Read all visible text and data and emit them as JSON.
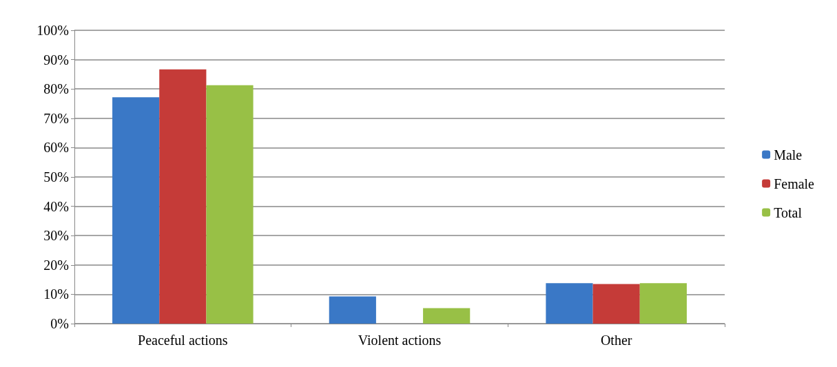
{
  "chart_data": {
    "type": "bar",
    "categories": [
      "Peaceful actions",
      "Violent actions",
      "Other"
    ],
    "series": [
      {
        "name": "Male",
        "color": "#3a78c6",
        "values": [
          77.2,
          9.3,
          13.8
        ]
      },
      {
        "name": "Female",
        "color": "#c53b38",
        "values": [
          86.7,
          0,
          13.5
        ]
      },
      {
        "name": "Total",
        "color": "#98c046",
        "values": [
          81.3,
          5.3,
          13.8
        ]
      }
    ],
    "ylim": [
      0,
      100
    ],
    "yticks": [
      {
        "value": 0,
        "label": "0%"
      },
      {
        "value": 10,
        "label": "10%"
      },
      {
        "value": 20,
        "label": "20%"
      },
      {
        "value": 30,
        "label": "30%"
      },
      {
        "value": 40,
        "label": "40%"
      },
      {
        "value": 50,
        "label": "50%"
      },
      {
        "value": 60,
        "label": "60%"
      },
      {
        "value": 70,
        "label": "70%"
      },
      {
        "value": 80,
        "label": "80%"
      },
      {
        "value": 90,
        "label": "90%"
      },
      {
        "value": 100,
        "label": "100%"
      }
    ],
    "grid": "y",
    "legend": "right"
  }
}
